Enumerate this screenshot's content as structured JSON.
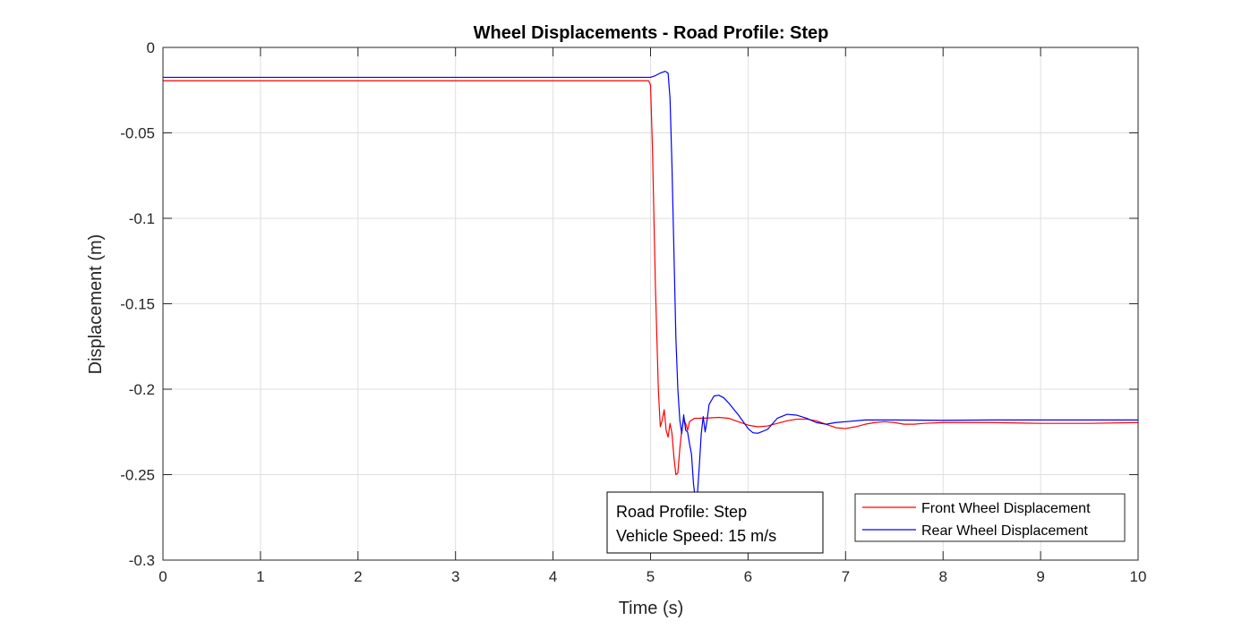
{
  "chart_data": {
    "type": "line",
    "title": "Wheel Displacements - Road Profile: Step",
    "xlabel": "Time (s)",
    "ylabel": "Displacement (m)",
    "xlim": [
      0,
      10
    ],
    "ylim": [
      -0.3,
      0
    ],
    "xticks": [
      "0",
      "1",
      "2",
      "3",
      "4",
      "5",
      "6",
      "7",
      "8",
      "9",
      "10"
    ],
    "yticks": [
      "0",
      "-0.05",
      "-0.1",
      "-0.15",
      "-0.2",
      "-0.25",
      "-0.3"
    ],
    "grid": true,
    "legend_position": "bottom-right",
    "annotation": [
      "Road Profile: Step",
      "Vehicle Speed: 15 m/s"
    ],
    "series": [
      {
        "name": "Front Wheel Displacement",
        "color": "#ff0000",
        "x": [
          0,
          4.98,
          5.0,
          5.02,
          5.05,
          5.08,
          5.1,
          5.12,
          5.14,
          5.16,
          5.18,
          5.2,
          5.22,
          5.24,
          5.26,
          5.28,
          5.3,
          5.32,
          5.34,
          5.36,
          5.38,
          5.4,
          5.45,
          5.5,
          5.6,
          5.7,
          5.8,
          5.9,
          6.0,
          6.1,
          6.2,
          6.3,
          6.4,
          6.5,
          6.6,
          6.7,
          6.8,
          6.9,
          7.0,
          7.1,
          7.2,
          7.3,
          7.4,
          7.5,
          7.6,
          7.7,
          7.8,
          8.0,
          8.5,
          9.0,
          9.5,
          10.0
        ],
        "y": [
          -0.0195,
          -0.0195,
          -0.022,
          -0.06,
          -0.14,
          -0.2,
          -0.222,
          -0.218,
          -0.212,
          -0.224,
          -0.228,
          -0.22,
          -0.226,
          -0.24,
          -0.25,
          -0.249,
          -0.235,
          -0.224,
          -0.218,
          -0.22,
          -0.224,
          -0.219,
          -0.217,
          -0.217,
          -0.2168,
          -0.2165,
          -0.217,
          -0.219,
          -0.221,
          -0.222,
          -0.2215,
          -0.22,
          -0.2185,
          -0.2175,
          -0.2175,
          -0.2185,
          -0.2205,
          -0.2225,
          -0.223,
          -0.222,
          -0.2205,
          -0.2195,
          -0.219,
          -0.2195,
          -0.2205,
          -0.2205,
          -0.22,
          -0.2195,
          -0.2195,
          -0.22,
          -0.22,
          -0.2195
        ]
      },
      {
        "name": "Rear Wheel Displacement",
        "color": "#0000ff",
        "x": [
          0,
          5.0,
          5.05,
          5.1,
          5.15,
          5.18,
          5.2,
          5.22,
          5.24,
          5.26,
          5.28,
          5.3,
          5.32,
          5.34,
          5.36,
          5.38,
          5.4,
          5.42,
          5.44,
          5.46,
          5.48,
          5.5,
          5.52,
          5.54,
          5.56,
          5.58,
          5.6,
          5.65,
          5.7,
          5.75,
          5.8,
          5.9,
          6.0,
          6.05,
          6.1,
          6.2,
          6.3,
          6.4,
          6.5,
          6.6,
          6.7,
          6.8,
          6.9,
          7.0,
          7.2,
          7.5,
          8.0,
          8.5,
          9.0,
          9.5,
          10.0
        ],
        "y": [
          -0.0175,
          -0.0175,
          -0.0165,
          -0.015,
          -0.014,
          -0.015,
          -0.03,
          -0.07,
          -0.12,
          -0.17,
          -0.2,
          -0.218,
          -0.226,
          -0.215,
          -0.224,
          -0.225,
          -0.232,
          -0.238,
          -0.255,
          -0.265,
          -0.262,
          -0.245,
          -0.226,
          -0.216,
          -0.225,
          -0.218,
          -0.209,
          -0.204,
          -0.2035,
          -0.205,
          -0.208,
          -0.215,
          -0.223,
          -0.2255,
          -0.2258,
          -0.2235,
          -0.217,
          -0.2147,
          -0.2152,
          -0.217,
          -0.2195,
          -0.2205,
          -0.2195,
          -0.219,
          -0.218,
          -0.218,
          -0.2182,
          -0.218,
          -0.218,
          -0.218,
          -0.218
        ]
      }
    ]
  }
}
